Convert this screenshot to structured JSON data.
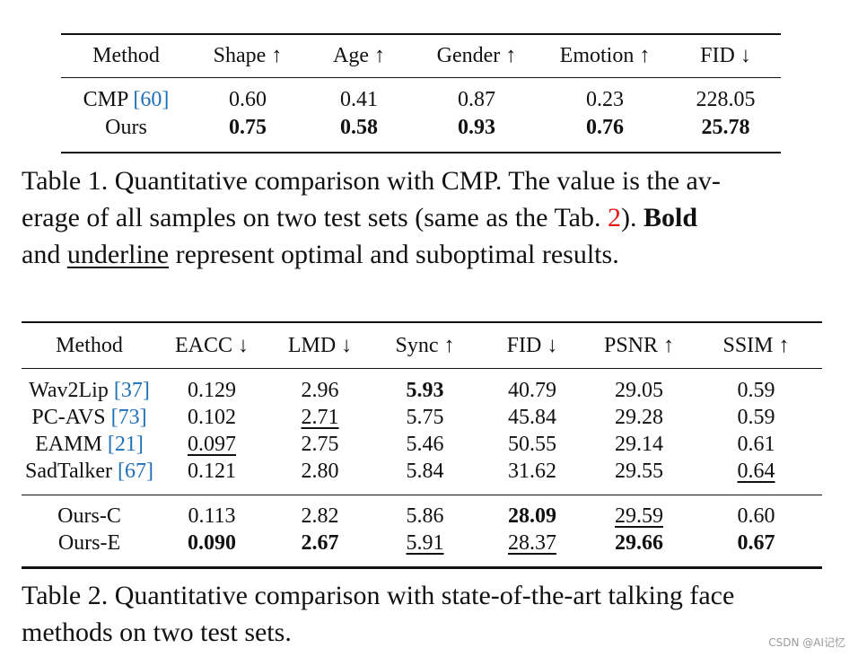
{
  "table1": {
    "headers": [
      "Method",
      "Shape ↑",
      "Age ↑",
      "Gender ↑",
      "Emotion ↑",
      "FID ↓"
    ],
    "rows": [
      {
        "method": "CMP",
        "cite": "[60]",
        "values": [
          "0.60",
          "0.41",
          "0.87",
          "0.23",
          "228.05"
        ]
      },
      {
        "method": "Ours",
        "values": [
          "0.75",
          "0.58",
          "0.93",
          "0.76",
          "25.78"
        ]
      }
    ]
  },
  "caption1": {
    "line1": "Table 1. Quantitative comparison with CMP. The value is the av-",
    "line2_pre": "erage of all samples on two test sets (same as the Tab. ",
    "line2_ref": "2",
    "line2_post": "). ",
    "line2_bold": "Bold",
    "line3_pre": "and ",
    "line3_underline": "underline",
    "line3_post": " represent optimal and suboptimal results."
  },
  "table2": {
    "headers": [
      "Method",
      "EACC ↓",
      "LMD ↓",
      "Sync ↑",
      "FID ↓",
      "PSNR ↑",
      "SSIM ↑"
    ],
    "group1": [
      {
        "method": "Wav2Lip",
        "cite": "[37]",
        "values": [
          "0.129",
          "2.96",
          "5.93",
          "40.79",
          "29.05",
          "0.59"
        ]
      },
      {
        "method": "PC-AVS",
        "cite": "[73]",
        "values": [
          "0.102",
          "2.71",
          "5.75",
          "45.84",
          "29.28",
          "0.59"
        ]
      },
      {
        "method": "EAMM",
        "cite": "[21]",
        "values": [
          "0.097",
          "2.75",
          "5.46",
          "50.55",
          "29.14",
          "0.61"
        ]
      },
      {
        "method": "SadTalker",
        "cite": "[67]",
        "values": [
          "0.121",
          "2.80",
          "5.84",
          "31.62",
          "29.55",
          "0.64"
        ]
      }
    ],
    "group2": [
      {
        "method": "Ours-C",
        "values": [
          "0.113",
          "2.82",
          "5.86",
          "28.09",
          "29.59",
          "0.60"
        ]
      },
      {
        "method": "Ours-E",
        "values": [
          "0.090",
          "2.67",
          "5.91",
          "28.37",
          "29.66",
          "0.67"
        ]
      }
    ]
  },
  "caption2": {
    "line1": "Table 2. Quantitative comparison with state-of-the-art talking face",
    "line2": "methods on two test sets."
  },
  "watermark": "CSDN @AI记忆",
  "colors": {
    "citation": "#1f6fb8",
    "table_reference": "#e11919",
    "text": "#111111"
  }
}
